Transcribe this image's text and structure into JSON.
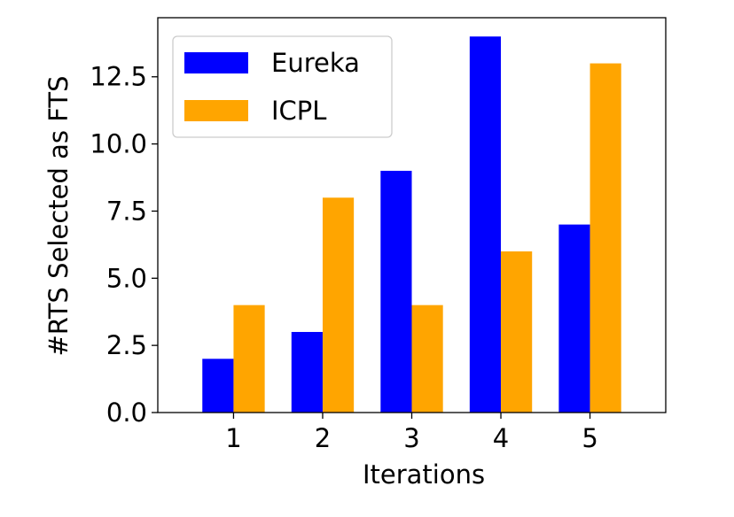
{
  "chart_data": {
    "type": "bar",
    "title": "",
    "xlabel": "Iterations",
    "ylabel": "#RTS Selected as FTS",
    "categories": [
      "1",
      "2",
      "3",
      "4",
      "5"
    ],
    "series": [
      {
        "name": "Eureka",
        "color": "#0000ff",
        "values": [
          2,
          3,
          9,
          14,
          7
        ]
      },
      {
        "name": "ICPL",
        "color": "#ffa500",
        "values": [
          4,
          8,
          4,
          6,
          13
        ]
      }
    ],
    "ylim": [
      0,
      14.7
    ],
    "yticks": [
      0.0,
      2.5,
      5.0,
      7.5,
      10.0,
      12.5
    ],
    "ytick_labels": [
      "0.0",
      "2.5",
      "5.0",
      "7.5",
      "10.0",
      "12.5"
    ],
    "grid": false,
    "legend": "top-left"
  }
}
